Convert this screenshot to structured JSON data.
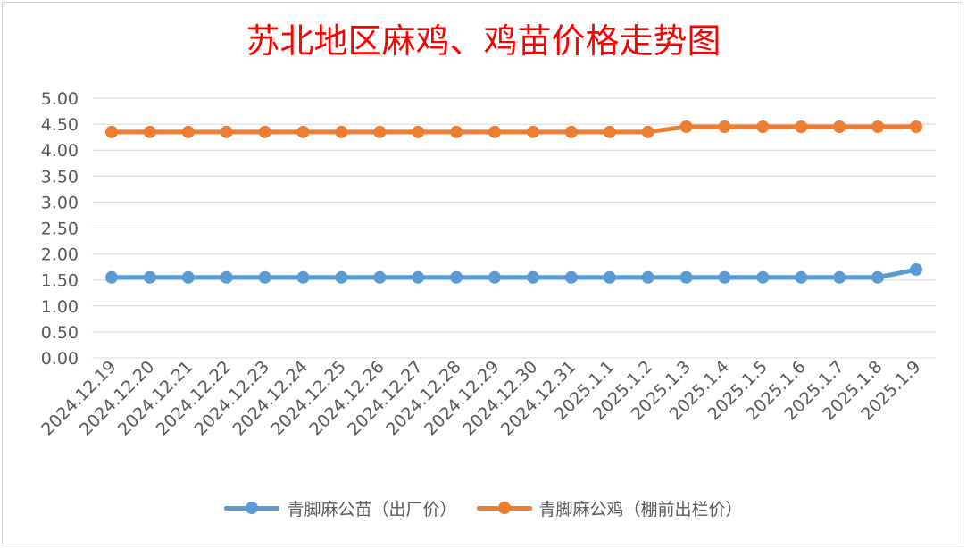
{
  "chart_data": {
    "type": "line",
    "title": "苏北地区麻鸡、鸡苗价格走势图",
    "categories": [
      "2024.12.19",
      "2024.12.20",
      "2024.12.21",
      "2024.12.22",
      "2024.12.23",
      "2024.12.24",
      "2024.12.25",
      "2024.12.26",
      "2024.12.27",
      "2024.12.28",
      "2024.12.29",
      "2024.12.30",
      "2024.12.31",
      "2025.1.1",
      "2025.1.2",
      "2025.1.3",
      "2025.1.4",
      "2025.1.5",
      "2025.1.6",
      "2025.1.7",
      "2025.1.8",
      "2025.1.9"
    ],
    "series": [
      {
        "name": "青脚麻公苗（出厂价）",
        "color": "#5b9bd5",
        "values": [
          1.55,
          1.55,
          1.55,
          1.55,
          1.55,
          1.55,
          1.55,
          1.55,
          1.55,
          1.55,
          1.55,
          1.55,
          1.55,
          1.55,
          1.55,
          1.55,
          1.55,
          1.55,
          1.55,
          1.55,
          1.55,
          1.7
        ]
      },
      {
        "name": "青脚麻公鸡（棚前出栏价）",
        "color": "#ed7d31",
        "values": [
          4.35,
          4.35,
          4.35,
          4.35,
          4.35,
          4.35,
          4.35,
          4.35,
          4.35,
          4.35,
          4.35,
          4.35,
          4.35,
          4.35,
          4.35,
          4.45,
          4.45,
          4.45,
          4.45,
          4.45,
          4.45,
          4.45
        ]
      }
    ],
    "yticks": [
      "0.00",
      "0.50",
      "1.00",
      "1.50",
      "2.00",
      "2.50",
      "3.00",
      "3.50",
      "4.00",
      "4.50",
      "5.00"
    ],
    "ylim": [
      0,
      5
    ],
    "grid": true,
    "legend_position": "bottom",
    "title_color": "#ff0000"
  }
}
